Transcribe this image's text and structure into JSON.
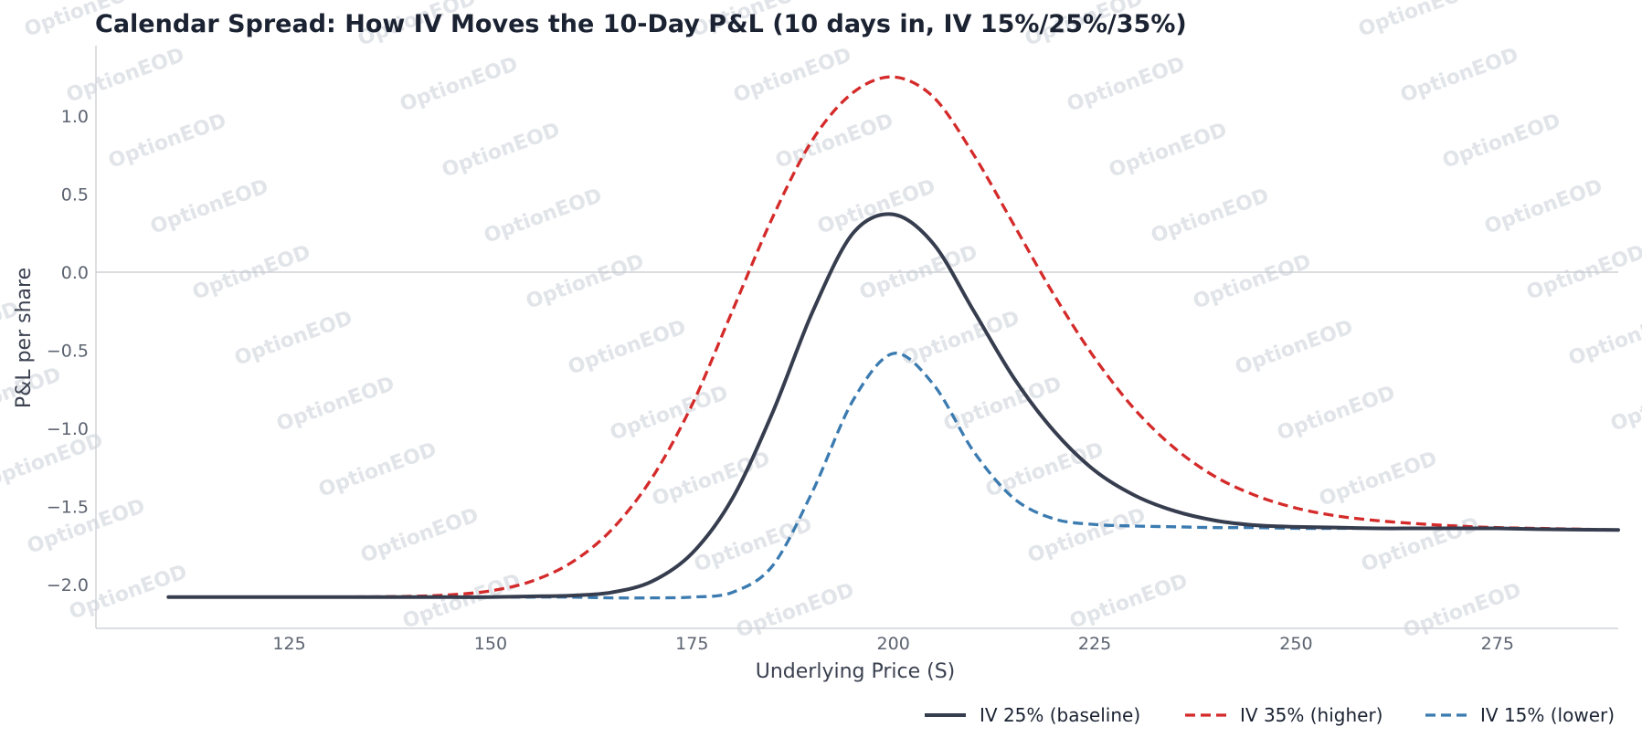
{
  "chart_data": {
    "type": "line",
    "title": "Calendar Spread: How IV Moves the 10-Day P&L (10 days in, IV 15%/25%/35%)",
    "xlabel": "Underlying Price (S)",
    "ylabel": "P&L per share",
    "xlim": [
      101,
      290
    ],
    "ylim": [
      -2.28,
      1.45
    ],
    "xticks": [
      125,
      150,
      175,
      200,
      225,
      250,
      275
    ],
    "xtick_labels": [
      "125",
      "150",
      "175",
      "200",
      "225",
      "250",
      "275"
    ],
    "yticks": [
      1.0,
      0.5,
      0.0,
      -0.5,
      -1.0,
      -1.5,
      -2.0
    ],
    "ytick_labels": [
      "1.0",
      "0.5",
      "0.0",
      "−0.5",
      "−1.0",
      "−1.5",
      "−2.0"
    ],
    "grid": false,
    "zero_line": true,
    "legend_position": "bottom-right",
    "x": [
      110,
      120,
      130,
      140,
      145,
      150,
      155,
      160,
      165,
      170,
      175,
      180,
      185,
      190,
      195,
      200,
      205,
      210,
      215,
      220,
      225,
      230,
      235,
      240,
      245,
      250,
      255,
      260,
      265,
      270,
      275,
      280,
      290
    ],
    "series": [
      {
        "name": "IV 25% (baseline)",
        "color": "#363d4e",
        "dash": "solid",
        "values": [
          -2.08,
          -2.08,
          -2.08,
          -2.08,
          -2.08,
          -2.08,
          -2.075,
          -2.07,
          -2.05,
          -1.98,
          -1.8,
          -1.45,
          -0.9,
          -0.25,
          0.25,
          0.37,
          0.18,
          -0.25,
          -0.68,
          -1.02,
          -1.27,
          -1.43,
          -1.53,
          -1.59,
          -1.62,
          -1.63,
          -1.635,
          -1.64,
          -1.64,
          -1.64,
          -1.64,
          -1.645,
          -1.65
        ]
      },
      {
        "name": "IV 35% (higher)",
        "color": "#d42a2a",
        "dash": "dashed",
        "values": [
          -2.08,
          -2.08,
          -2.08,
          -2.075,
          -2.065,
          -2.04,
          -1.98,
          -1.86,
          -1.65,
          -1.32,
          -0.85,
          -0.25,
          0.35,
          0.85,
          1.15,
          1.25,
          1.12,
          0.75,
          0.3,
          -0.15,
          -0.55,
          -0.88,
          -1.13,
          -1.31,
          -1.43,
          -1.51,
          -1.56,
          -1.59,
          -1.61,
          -1.625,
          -1.635,
          -1.64,
          -1.65
        ]
      },
      {
        "name": "IV 15% (lower)",
        "color": "#3b7bb0",
        "dash": "dashed",
        "values": [
          -2.08,
          -2.08,
          -2.08,
          -2.08,
          -2.08,
          -2.08,
          -2.08,
          -2.08,
          -2.085,
          -2.085,
          -2.08,
          -2.05,
          -1.88,
          -1.4,
          -0.82,
          -0.52,
          -0.72,
          -1.15,
          -1.45,
          -1.58,
          -1.615,
          -1.625,
          -1.63,
          -1.635,
          -1.635,
          -1.64,
          -1.64,
          -1.64,
          -1.64,
          -1.64,
          -1.64,
          -1.645,
          -1.65
        ]
      }
    ],
    "watermark_text": "OptionEOD"
  }
}
